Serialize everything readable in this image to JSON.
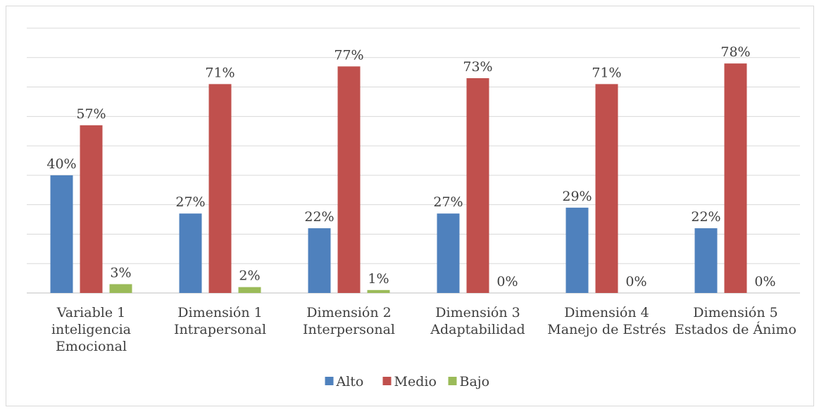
{
  "chart_data": {
    "type": "bar",
    "categories": [
      [
        "Variable 1",
        "inteligencia",
        "Emocional"
      ],
      [
        "Dimensión 1",
        "Intrapersonal"
      ],
      [
        "Dimensión 2",
        "Interpersonal"
      ],
      [
        "Dimensión 3",
        "Adaptabilidad"
      ],
      [
        "Dimensión 4",
        "Manejo de Estrés"
      ],
      [
        "Dimensión 5",
        "Estados de Ánimo"
      ]
    ],
    "series": [
      {
        "name": "Alto",
        "color": "#4f81bd",
        "values": [
          40,
          27,
          22,
          27,
          29,
          22
        ],
        "labels": [
          "40%",
          "27%",
          "22%",
          "27%",
          "29%",
          "22%"
        ]
      },
      {
        "name": "Medio",
        "color": "#c0504d",
        "values": [
          57,
          71,
          77,
          73,
          71,
          78
        ],
        "labels": [
          "57%",
          "71%",
          "77%",
          "73%",
          "71%",
          "78%"
        ]
      },
      {
        "name": "Bajo",
        "color": "#9bbb59",
        "values": [
          3,
          2,
          1,
          0,
          0,
          0
        ],
        "labels": [
          "3%",
          "2%",
          "1%",
          "0%",
          "0%",
          "0%"
        ]
      }
    ],
    "ylim": [
      0,
      90
    ],
    "grid": true,
    "legend": "bottom-center",
    "title": "",
    "xlabel": "",
    "ylabel": ""
  }
}
